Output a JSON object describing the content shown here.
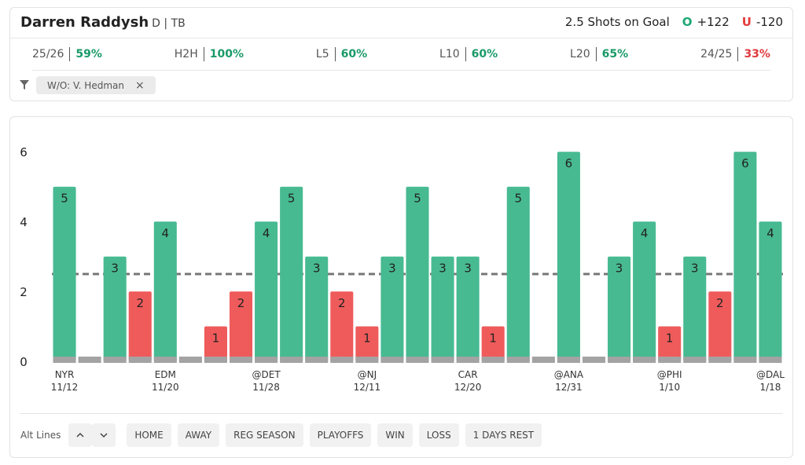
{
  "header": {
    "player": "Darren Raddysh",
    "position": "D | TB",
    "market": "2.5 Shots on Goal",
    "over": {
      "label": "O",
      "odds": "+122",
      "color": "#1aa874"
    },
    "under": {
      "label": "U",
      "odds": "-120",
      "color": "#e53b3b"
    }
  },
  "stats": [
    {
      "label": "25/26",
      "value": "59%",
      "color": "#1a9a68"
    },
    {
      "label": "H2H",
      "value": "100%",
      "color": "#1a9a68"
    },
    {
      "label": "L5",
      "value": "60%",
      "color": "#1a9a68"
    },
    {
      "label": "L10",
      "value": "60%",
      "color": "#1a9a68"
    },
    {
      "label": "L20",
      "value": "65%",
      "color": "#1a9a68"
    },
    {
      "label": "24/25",
      "value": "33%",
      "color": "#e0393e"
    }
  ],
  "filters": [
    {
      "label": "W/O: V. Hedman",
      "close": "×"
    }
  ],
  "chart_data": {
    "type": "bar",
    "categories": [
      "NYR",
      null,
      null,
      null,
      "EDM",
      null,
      null,
      null,
      "@DET",
      null,
      null,
      null,
      "@NJ",
      null,
      null,
      null,
      "CAR",
      null,
      null,
      null,
      "@ANA",
      null,
      null,
      null,
      "@PHI",
      null,
      null,
      null,
      "@DAL"
    ],
    "dates": [
      "11/12",
      null,
      null,
      null,
      "11/20",
      null,
      null,
      null,
      "11/28",
      null,
      null,
      null,
      "12/11",
      null,
      null,
      null,
      "12/20",
      null,
      null,
      null,
      "12/31",
      null,
      null,
      null,
      "1/10",
      null,
      null,
      null,
      "1/18"
    ],
    "values": [
      5,
      0,
      3,
      2,
      4,
      0,
      1,
      2,
      4,
      5,
      3,
      2,
      1,
      3,
      5,
      3,
      3,
      1,
      5,
      0,
      6,
      0,
      3,
      4,
      1,
      3,
      2,
      6,
      4
    ],
    "threshold": 2.5,
    "ylim": [
      0,
      6.5
    ],
    "yticks": [
      0,
      2,
      4,
      6
    ],
    "colors": {
      "over": "#47ba92",
      "under": "#ef5b5b",
      "base": "#a3a3a3",
      "threshold": "#777777"
    }
  },
  "footer": {
    "alt_lines": "Alt Lines",
    "buttons": [
      "HOME",
      "AWAY",
      "REG SEASON",
      "PLAYOFFS",
      "WIN",
      "LOSS",
      "1 DAYS REST"
    ]
  }
}
